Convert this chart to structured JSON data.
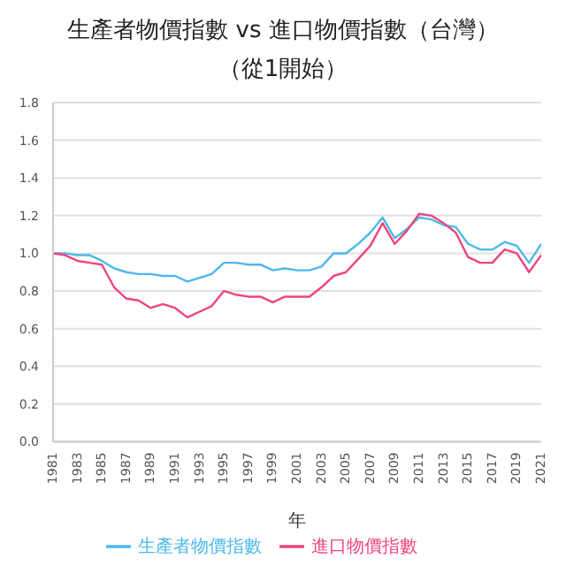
{
  "chart_data": {
    "type": "line",
    "title": "生產者物價指數 vs 進口物價指數（台灣）",
    "subtitle": "（從1開始）",
    "xlabel": "年",
    "x": [
      1981,
      1982,
      1983,
      1984,
      1985,
      1986,
      1987,
      1988,
      1989,
      1990,
      1991,
      1992,
      1993,
      1994,
      1995,
      1996,
      1997,
      1998,
      1999,
      2000,
      2001,
      2002,
      2003,
      2004,
      2005,
      2006,
      2007,
      2008,
      2009,
      2010,
      2011,
      2012,
      2013,
      2014,
      2015,
      2016,
      2017,
      2018,
      2019,
      2020,
      2021
    ],
    "series": [
      {
        "name": "生產者物價指數",
        "color": "#4db8ec",
        "values": [
          1.0,
          1.0,
          0.99,
          0.99,
          0.96,
          0.92,
          0.9,
          0.89,
          0.89,
          0.88,
          0.88,
          0.85,
          0.87,
          0.89,
          0.95,
          0.95,
          0.94,
          0.94,
          0.91,
          0.92,
          0.91,
          0.91,
          0.93,
          1.0,
          1.0,
          1.05,
          1.11,
          1.19,
          1.08,
          1.13,
          1.19,
          1.18,
          1.15,
          1.14,
          1.05,
          1.02,
          1.02,
          1.06,
          1.04,
          0.95,
          1.05
        ]
      },
      {
        "name": "進口物價指數",
        "color": "#f0457a",
        "values": [
          1.0,
          0.99,
          0.96,
          0.95,
          0.94,
          0.82,
          0.76,
          0.75,
          0.71,
          0.73,
          0.71,
          0.66,
          0.69,
          0.72,
          0.8,
          0.78,
          0.77,
          0.77,
          0.74,
          0.77,
          0.77,
          0.77,
          0.82,
          0.88,
          0.9,
          0.97,
          1.04,
          1.16,
          1.05,
          1.12,
          1.21,
          1.2,
          1.16,
          1.11,
          0.98,
          0.95,
          0.95,
          1.02,
          1.0,
          0.9,
          0.99
        ]
      }
    ],
    "xlim": [
      1981,
      2021
    ],
    "xticks": [
      1981,
      1983,
      1985,
      1987,
      1989,
      1991,
      1993,
      1995,
      1997,
      1999,
      2001,
      2003,
      2005,
      2007,
      2009,
      2011,
      2013,
      2015,
      2017,
      2019,
      2021
    ],
    "ylim": [
      0,
      1.8
    ],
    "yticks": [
      {
        "value": 0,
        "label": "0.0"
      },
      {
        "value": 0.2,
        "label": "0.2"
      },
      {
        "value": 0.4,
        "label": "0.4"
      },
      {
        "value": 0.6,
        "label": "0.6"
      },
      {
        "value": 0.8,
        "label": "0.8"
      },
      {
        "value": 1,
        "label": "1.0"
      },
      {
        "value": 1.2,
        "label": "1.2"
      },
      {
        "value": 1.4,
        "label": "1.4"
      },
      {
        "value": 1.6,
        "label": "1.6"
      },
      {
        "value": 1.8,
        "label": "1.8"
      }
    ],
    "grid": "y",
    "legend": "bottom",
    "marker": "none",
    "line_style": "solid"
  }
}
